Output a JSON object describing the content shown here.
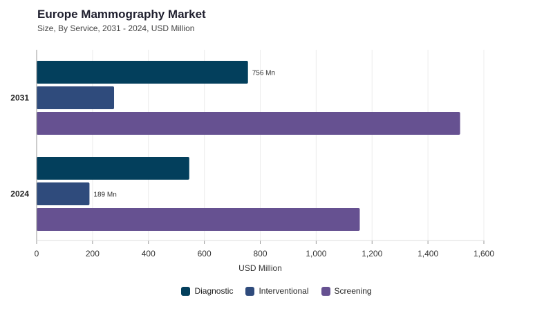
{
  "header": {
    "title": "Europe Mammography Market",
    "subtitle": "Size, By Service, 2031 - 2024, USD Million"
  },
  "chart_data": {
    "type": "bar",
    "orientation": "horizontal",
    "categories": [
      "2031",
      "2024"
    ],
    "series": [
      {
        "name": "Diagnostic",
        "color": "#033f5c",
        "values": [
          756,
          546
        ],
        "labels": [
          "756 Mn",
          ""
        ]
      },
      {
        "name": "Interventional",
        "color": "#2f4b7c",
        "values": [
          277,
          189
        ],
        "labels": [
          "",
          "189 Mn"
        ]
      },
      {
        "name": "Screening",
        "color": "#665191",
        "values": [
          1515,
          1156
        ],
        "labels": [
          "",
          ""
        ]
      }
    ],
    "xlabel": "USD Million",
    "xlim": [
      0,
      1600
    ],
    "xticks": [
      "0",
      "200",
      "400",
      "600",
      "800",
      "1,000",
      "1,200",
      "1,400",
      "1,600"
    ],
    "grid": true,
    "legend_position": "bottom"
  }
}
